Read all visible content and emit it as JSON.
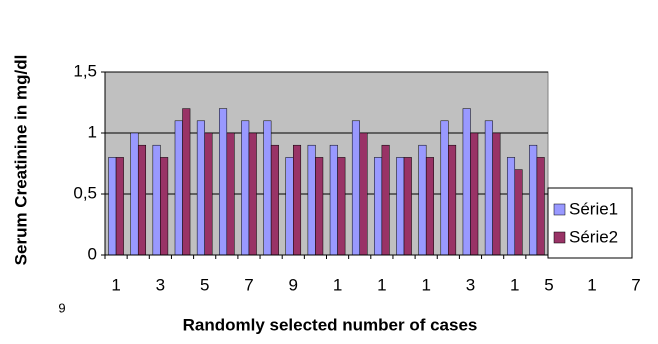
{
  "chart_data": {
    "type": "bar",
    "y_label": "Serum Creatinine in mg/dl",
    "x_label": "Randomly selected number of cases",
    "categories": [
      "1",
      null,
      "3",
      null,
      "5",
      null,
      "7",
      null,
      "9",
      null,
      "1",
      null,
      "1",
      null,
      "1",
      null,
      "3",
      null,
      "1",
      null
    ],
    "stray_labels": [
      "5",
      "1",
      "7",
      "9"
    ],
    "series": [
      {
        "name": "Série1",
        "color": "#9999ff",
        "values": [
          0.8,
          1.0,
          0.9,
          1.1,
          1.1,
          1.2,
          1.1,
          1.1,
          0.8,
          0.9,
          0.9,
          1.1,
          0.8,
          0.8,
          0.9,
          1.1,
          1.2,
          1.1,
          0.8,
          0.9
        ]
      },
      {
        "name": "Série2",
        "color": "#993366",
        "values": [
          0.8,
          0.9,
          0.8,
          1.2,
          1.0,
          1.0,
          1.0,
          0.9,
          0.9,
          0.8,
          0.8,
          1.0,
          0.9,
          0.8,
          0.8,
          0.9,
          1.0,
          1.0,
          0.7,
          0.8
        ]
      }
    ],
    "ylim": [
      0,
      1.5
    ],
    "yticks": [
      0,
      {
        "value": 0.5,
        "label": "0,5"
      },
      1,
      {
        "value": 1.5,
        "label": "1,5"
      }
    ],
    "grid": true,
    "plot_background": "#c0c0c0",
    "legend": "right"
  }
}
